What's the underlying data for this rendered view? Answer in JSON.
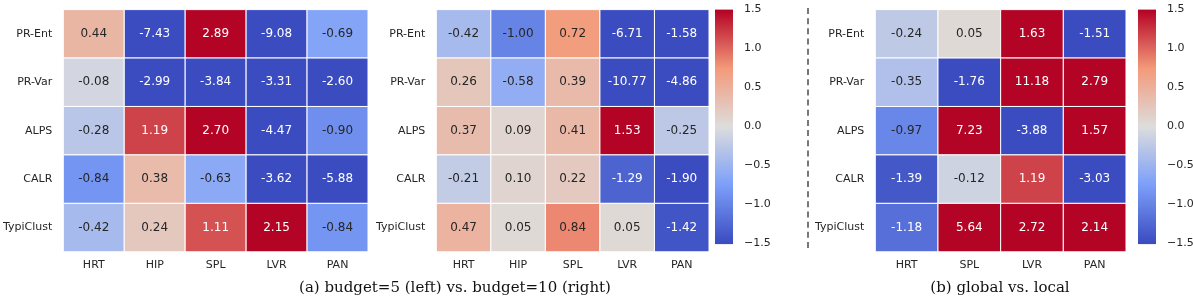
{
  "chart_data": [
    {
      "type": "heatmap",
      "categories": [
        "HRT",
        "HIP",
        "SPL",
        "LVR",
        "PAN"
      ],
      "y_categories": [
        "PR-Ent",
        "PR-Var",
        "ALPS",
        "CALR",
        "TypiClust"
      ],
      "cells": [
        [
          0.44,
          -7.43,
          2.89,
          -9.08,
          -0.69
        ],
        [
          -0.08,
          -2.99,
          -3.84,
          -3.31,
          -2.6
        ],
        [
          -0.28,
          1.19,
          2.7,
          -4.47,
          -0.9
        ],
        [
          -0.84,
          0.38,
          -0.63,
          -3.62,
          -5.88
        ],
        [
          -0.42,
          0.24,
          1.11,
          2.15,
          -0.84
        ]
      ],
      "cell_labels": [
        [
          "0.44",
          "-7.43",
          "2.89",
          "-9.08",
          "-0.69"
        ],
        [
          "-0.08",
          "-2.99",
          "-3.84",
          "-3.31",
          "-2.60"
        ],
        [
          "-0.28",
          "1.19",
          "2.70",
          "-4.47",
          "-0.90"
        ],
        [
          "-0.84",
          "0.38",
          "-0.63",
          "-3.62",
          "-5.88"
        ],
        [
          "-0.42",
          "0.24",
          "1.11",
          "2.15",
          "-0.84"
        ]
      ],
      "annotations": [
        "(a) budget=5 (left) vs. budget=10 (right)"
      ]
    },
    {
      "type": "heatmap",
      "categories": [
        "HRT",
        "HIP",
        "SPL",
        "LVR",
        "PAN"
      ],
      "y_categories": [
        "PR-Ent",
        "PR-Var",
        "ALPS",
        "CALR",
        "TypiClust"
      ],
      "cells": [
        [
          -0.42,
          -1.0,
          0.72,
          -6.71,
          -1.58
        ],
        [
          0.26,
          -0.58,
          0.39,
          -10.77,
          -4.86
        ],
        [
          0.37,
          0.09,
          0.41,
          1.53,
          -0.25
        ],
        [
          -0.21,
          0.1,
          0.22,
          -1.29,
          -1.9
        ],
        [
          0.47,
          0.05,
          0.84,
          0.05,
          -1.42
        ]
      ],
      "cell_labels": [
        [
          "-0.42",
          "-1.00",
          "0.72",
          "-6.71",
          "-1.58"
        ],
        [
          "0.26",
          "-0.58",
          "0.39",
          "-10.77",
          "-4.86"
        ],
        [
          "0.37",
          "0.09",
          "0.41",
          "1.53",
          "-0.25"
        ],
        [
          "-0.21",
          "0.10",
          "0.22",
          "-1.29",
          "-1.90"
        ],
        [
          "0.47",
          "0.05",
          "0.84",
          "0.05",
          "-1.42"
        ]
      ],
      "clim": [
        -1.5,
        1.5
      ],
      "cticks": [
        {
          "value": -1.5,
          "label": "−1.5"
        },
        {
          "value": -1.0,
          "label": "−1.0"
        },
        {
          "value": -0.5,
          "label": "−0.5"
        },
        {
          "value": 0,
          "label": "0.0"
        },
        {
          "value": 0.5,
          "label": "0.5"
        },
        {
          "value": 1.0,
          "label": "1.0"
        },
        {
          "value": 1.5,
          "label": "1.5"
        }
      ]
    },
    {
      "type": "heatmap",
      "categories": [
        "HRT",
        "SPL",
        "LVR",
        "PAN"
      ],
      "y_categories": [
        "PR-Ent",
        "PR-Var",
        "ALPS",
        "CALR",
        "TypiClust"
      ],
      "cells": [
        [
          -0.24,
          0.05,
          1.63,
          -1.51
        ],
        [
          -0.35,
          -1.76,
          11.18,
          2.79
        ],
        [
          -0.97,
          7.23,
          -3.88,
          1.57
        ],
        [
          -1.39,
          -0.12,
          1.19,
          -3.03
        ],
        [
          -1.18,
          5.64,
          2.72,
          2.14
        ]
      ],
      "cell_labels": [
        [
          "-0.24",
          "0.05",
          "1.63",
          "-1.51"
        ],
        [
          "-0.35",
          "-1.76",
          "11.18",
          "2.79"
        ],
        [
          "-0.97",
          "7.23",
          "-3.88",
          "1.57"
        ],
        [
          "-1.39",
          "-0.12",
          "1.19",
          "-3.03"
        ],
        [
          "-1.18",
          "5.64",
          "2.72",
          "2.14"
        ]
      ],
      "clim": [
        -1.5,
        1.5
      ],
      "cticks": [
        {
          "value": -1.5,
          "label": "−1.5"
        },
        {
          "value": -1.0,
          "label": "−1.0"
        },
        {
          "value": -0.5,
          "label": "−0.5"
        },
        {
          "value": 0,
          "label": "0.0"
        },
        {
          "value": 0.5,
          "label": "0.5"
        },
        {
          "value": 1.0,
          "label": "1.0"
        },
        {
          "value": 1.5,
          "label": "1.5"
        }
      ],
      "annotations": [
        "(b) global vs. local"
      ]
    }
  ]
}
